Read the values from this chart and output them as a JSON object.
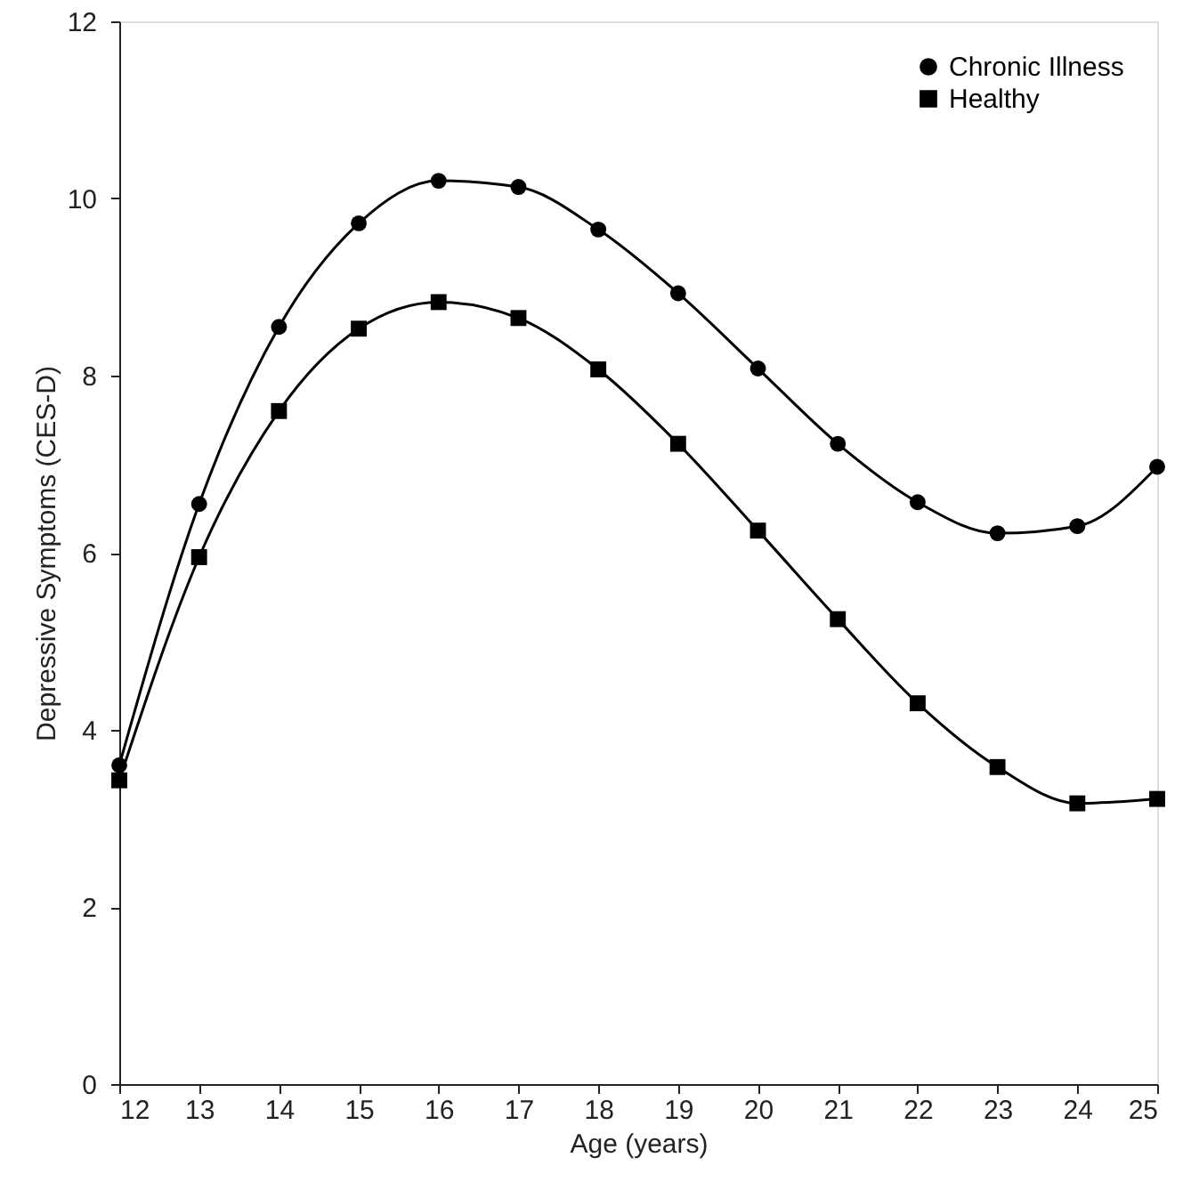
{
  "chart_data": {
    "type": "line",
    "xlabel": "Age (years)",
    "ylabel": "Depressive Symptoms (CES-D)",
    "x": [
      12,
      13,
      14,
      15,
      16,
      17,
      18,
      19,
      20,
      21,
      22,
      23,
      24,
      25
    ],
    "xlim": [
      12,
      25
    ],
    "xticks": [
      12,
      13,
      14,
      15,
      16,
      17,
      18,
      19,
      20,
      21,
      22,
      23,
      24,
      25
    ],
    "ylim": [
      0,
      12
    ],
    "yticks": [
      0,
      2,
      4,
      6,
      8,
      10,
      12
    ],
    "grid": false,
    "legend": "top right",
    "line_style": "solid",
    "series": [
      {
        "name": "Chronic Illness",
        "color": "#000000",
        "marker": "circle",
        "values": [
          3.6,
          6.55,
          8.55,
          9.72,
          10.2,
          10.13,
          9.65,
          8.93,
          8.08,
          7.23,
          6.57,
          6.22,
          6.3,
          6.97
        ]
      },
      {
        "name": "Healthy",
        "color": "#000000",
        "marker": "square",
        "values": [
          3.43,
          5.95,
          7.6,
          8.53,
          8.83,
          8.65,
          8.07,
          7.23,
          6.25,
          5.25,
          4.3,
          3.58,
          3.17,
          3.22
        ]
      }
    ]
  }
}
